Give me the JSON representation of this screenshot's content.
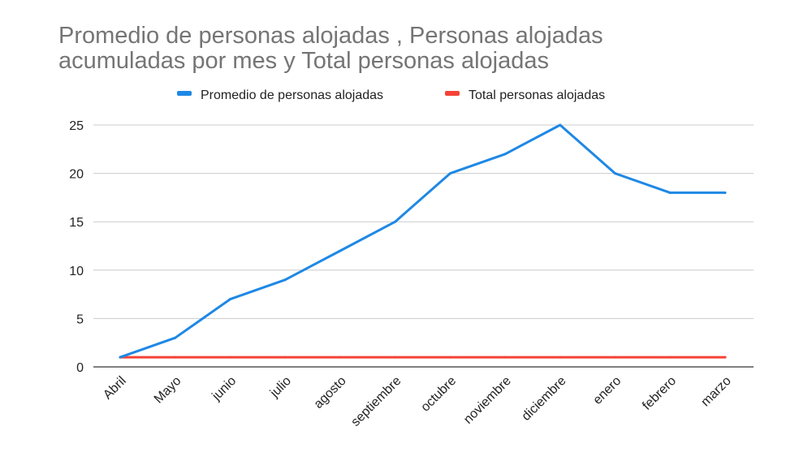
{
  "chart_data": {
    "type": "line",
    "title": [
      "Promedio de personas alojadas , Personas alojadas",
      "acumuladas por mes y Total personas alojadas"
    ],
    "xlabel": "",
    "ylabel": "",
    "categories": [
      "Abril",
      "Mayo",
      "junio",
      "julio",
      "agosto",
      "septiembre",
      "octubre",
      "noviembre",
      "diciembre",
      "enero",
      "febrero",
      "marzo"
    ],
    "ylim": [
      0,
      25
    ],
    "yticks": [
      "0",
      "5",
      "10",
      "15",
      "20",
      "25"
    ],
    "grid": true,
    "legend_position": "top",
    "series": [
      {
        "name": "Promedio de personas alojadas",
        "color": "#1E88E5",
        "values": [
          1,
          3,
          7,
          9,
          12,
          15,
          20,
          22,
          25,
          20,
          18,
          18
        ]
      },
      {
        "name": "Total personas alojadas",
        "color": "#F44336",
        "values": [
          1,
          1,
          1,
          1,
          1,
          1,
          1,
          1,
          1,
          1,
          1,
          1
        ]
      }
    ]
  }
}
